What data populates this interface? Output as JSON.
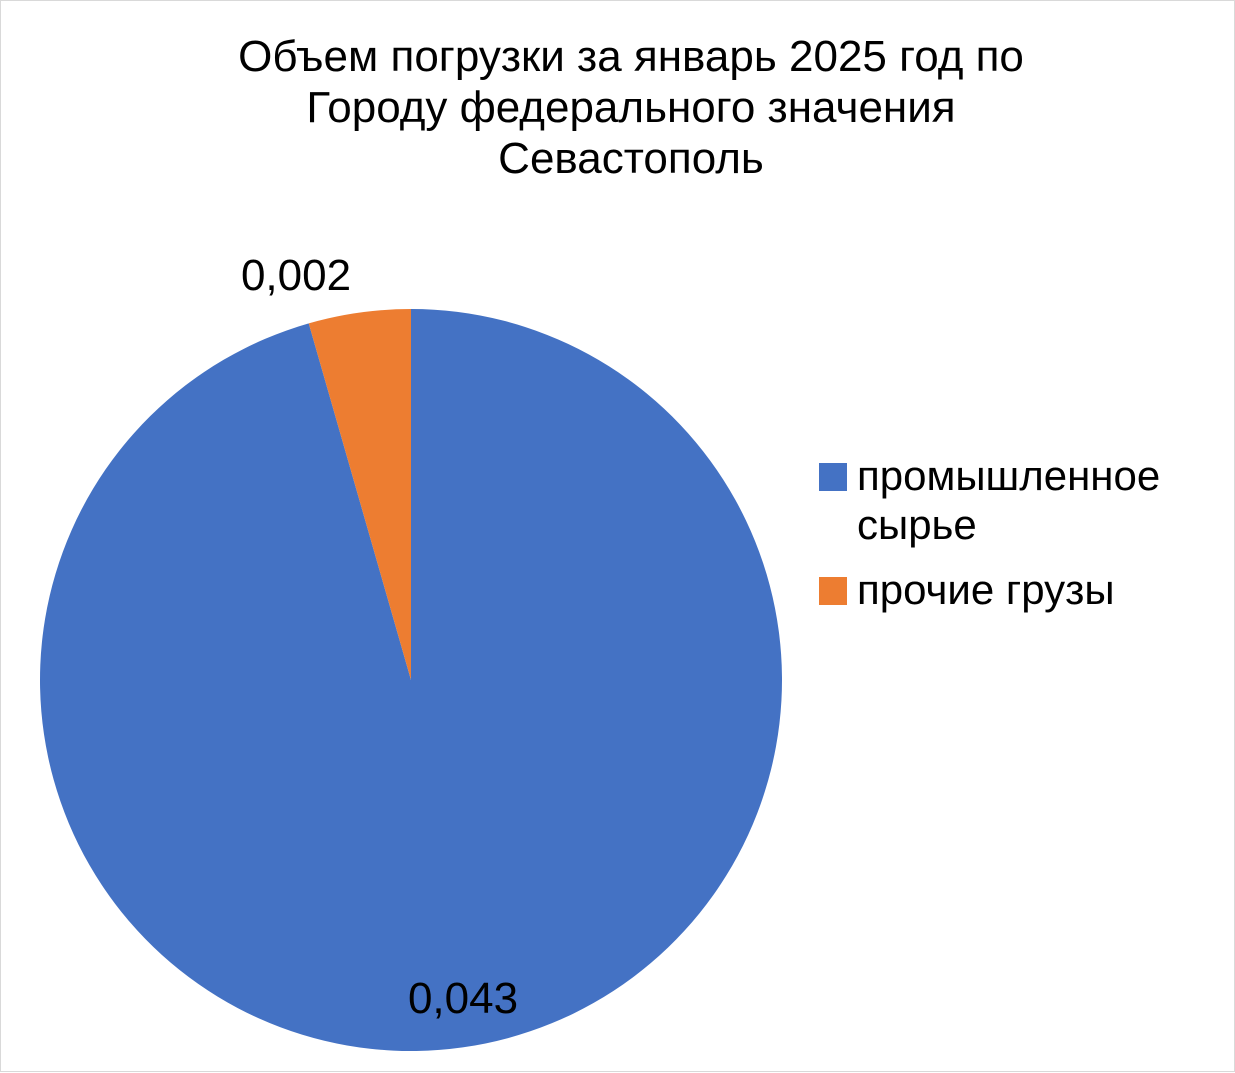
{
  "chart_data": {
    "type": "pie",
    "title": "Объем погрузки за январь 2025 год по\nГороду федерального значения\nСевастополь",
    "categories": [
      "промышленное сырье",
      "прочие грузы"
    ],
    "values": [
      0.043,
      0.002
    ],
    "value_labels": [
      "0,043",
      "0,002"
    ],
    "colors": [
      "#4472C4",
      "#ED7D31"
    ],
    "legend_position": "right",
    "start_angle": "12 o'clock, clockwise"
  }
}
